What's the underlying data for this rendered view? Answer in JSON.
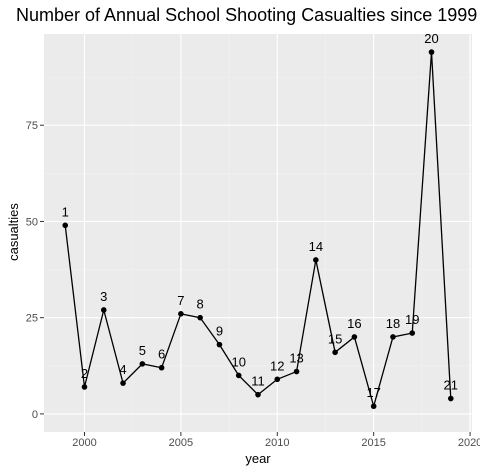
{
  "chart_data": {
    "type": "line",
    "title": "Number of Annual School Shooting Casualties since 1999",
    "xlabel": "year",
    "ylabel": "casualties",
    "xlim": [
      1997.9,
      2020.1
    ],
    "ylim": [
      -4.7,
      98.7
    ],
    "x_ticks": [
      2000,
      2005,
      2010,
      2015,
      2020
    ],
    "x_tick_labels": [
      "2000",
      "2005",
      "2010",
      "2015",
      "2020"
    ],
    "y_ticks": [
      0,
      25,
      50,
      75
    ],
    "y_tick_labels": [
      "0",
      "25",
      "50",
      "75"
    ],
    "grid": true,
    "legend": "none",
    "series": [
      {
        "x": [
          1999,
          2000,
          2001,
          2002,
          2003,
          2004,
          2005,
          2006,
          2007,
          2008,
          2009,
          2010,
          2011,
          2012,
          2013,
          2014,
          2015,
          2016,
          2017,
          2018,
          2019
        ],
        "values": [
          49,
          7,
          27,
          8,
          13,
          12,
          26,
          25,
          18,
          10,
          5,
          9,
          11,
          40,
          16,
          20,
          2,
          20,
          21,
          94,
          4
        ],
        "labels": [
          "1",
          "2",
          "3",
          "4",
          "5",
          "6",
          "7",
          "8",
          "9",
          "10",
          "11",
          "12",
          "13",
          "14",
          "15",
          "16",
          "17",
          "18",
          "19",
          "20",
          "21"
        ]
      }
    ]
  }
}
